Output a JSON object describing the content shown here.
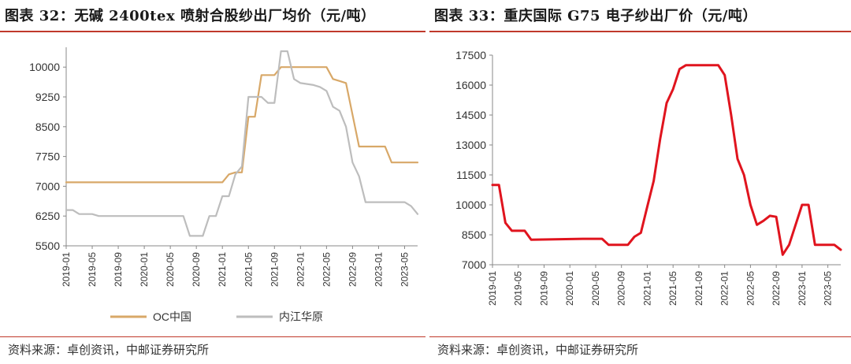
{
  "left": {
    "title": "图表 32：无碱 2400tex 喷射合股纱出厂均价（元/吨）",
    "source": "资料来源：卓创资讯，中邮证券研究所",
    "chart_data": {
      "type": "line",
      "ylim": [
        5500,
        10500
      ],
      "yticks": [
        5500,
        6250,
        7000,
        7750,
        8500,
        9250,
        10000
      ],
      "xlim": [
        "2019-01",
        "2023-07"
      ],
      "xticks": [
        "2019-01",
        "2019-05",
        "2019-09",
        "2020-01",
        "2020-05",
        "2020-09",
        "2021-01",
        "2021-05",
        "2021-09",
        "2022-01",
        "2022-05",
        "2022-09",
        "2023-01",
        "2023-05"
      ],
      "legend_position": "bottom",
      "series": [
        {
          "name": "OC中国",
          "color": "#D8A868",
          "points": [
            [
              "2019-01",
              7100
            ],
            [
              "2021-01",
              7100
            ],
            [
              "2021-02",
              7300
            ],
            [
              "2021-03",
              7350
            ],
            [
              "2021-04",
              7350
            ],
            [
              "2021-05",
              8750
            ],
            [
              "2021-06",
              8750
            ],
            [
              "2021-07",
              9800
            ],
            [
              "2021-08",
              9800
            ],
            [
              "2021-09",
              9800
            ],
            [
              "2021-10",
              10000
            ],
            [
              "2021-12",
              10000
            ],
            [
              "2022-03",
              10000
            ],
            [
              "2022-05",
              10000
            ],
            [
              "2022-06",
              9700
            ],
            [
              "2022-07",
              9650
            ],
            [
              "2022-08",
              9600
            ],
            [
              "2022-09",
              8800
            ],
            [
              "2022-10",
              8000
            ],
            [
              "2023-02",
              8000
            ],
            [
              "2023-03",
              7600
            ],
            [
              "2023-07",
              7600
            ]
          ]
        },
        {
          "name": "内江华原",
          "color": "#BDBDBD",
          "points": [
            [
              "2019-01",
              6400
            ],
            [
              "2019-02",
              6400
            ],
            [
              "2019-03",
              6300
            ],
            [
              "2019-05",
              6300
            ],
            [
              "2019-06",
              6250
            ],
            [
              "2020-07",
              6250
            ],
            [
              "2020-08",
              5750
            ],
            [
              "2020-10",
              5750
            ],
            [
              "2020-11",
              6250
            ],
            [
              "2020-12",
              6250
            ],
            [
              "2021-01",
              6750
            ],
            [
              "2021-02",
              6750
            ],
            [
              "2021-03",
              7300
            ],
            [
              "2021-04",
              7500
            ],
            [
              "2021-05",
              9250
            ],
            [
              "2021-07",
              9250
            ],
            [
              "2021-08",
              9100
            ],
            [
              "2021-09",
              9100
            ],
            [
              "2021-10",
              10400
            ],
            [
              "2021-11",
              10400
            ],
            [
              "2021-12",
              9700
            ],
            [
              "2022-01",
              9600
            ],
            [
              "2022-03",
              9550
            ],
            [
              "2022-04",
              9500
            ],
            [
              "2022-05",
              9400
            ],
            [
              "2022-06",
              9000
            ],
            [
              "2022-07",
              8900
            ],
            [
              "2022-08",
              8500
            ],
            [
              "2022-09",
              7600
            ],
            [
              "2022-10",
              7250
            ],
            [
              "2022-11",
              6600
            ],
            [
              "2023-05",
              6600
            ],
            [
              "2023-06",
              6500
            ],
            [
              "2023-07",
              6300
            ]
          ]
        }
      ]
    }
  },
  "right": {
    "title": "图表 33：重庆国际 G75 电子纱出厂价（元/吨）",
    "source": "资料来源：卓创资讯，中邮证券研究所",
    "chart_data": {
      "type": "line",
      "ylim": [
        7000,
        17500
      ],
      "yticks": [
        7000,
        8500,
        10000,
        11500,
        13000,
        14500,
        16000,
        17500
      ],
      "xlim": [
        "2019-01",
        "2023-07"
      ],
      "xticks": [
        "2019-01",
        "2019-05",
        "2019-09",
        "2020-01",
        "2020-05",
        "2020-09",
        "2021-01",
        "2021-05",
        "2021-09",
        "2022-01",
        "2022-05",
        "2022-09",
        "2023-01",
        "2023-05"
      ],
      "series": [
        {
          "name": "",
          "color": "#E0141E",
          "points": [
            [
              "2019-01",
              11000
            ],
            [
              "2019-02",
              11000
            ],
            [
              "2019-03",
              9100
            ],
            [
              "2019-04",
              8700
            ],
            [
              "2019-06",
              8700
            ],
            [
              "2019-07",
              8250
            ],
            [
              "2020-03",
              8300
            ],
            [
              "2020-06",
              8300
            ],
            [
              "2020-07",
              8000
            ],
            [
              "2020-10",
              8000
            ],
            [
              "2020-11",
              8400
            ],
            [
              "2020-12",
              8600
            ],
            [
              "2021-01",
              9900
            ],
            [
              "2021-02",
              11200
            ],
            [
              "2021-03",
              13300
            ],
            [
              "2021-04",
              15100
            ],
            [
              "2021-05",
              15800
            ],
            [
              "2021-06",
              16800
            ],
            [
              "2021-07",
              17000
            ],
            [
              "2021-08",
              17000
            ],
            [
              "2021-12",
              17000
            ],
            [
              "2022-01",
              16500
            ],
            [
              "2022-02",
              14500
            ],
            [
              "2022-03",
              12300
            ],
            [
              "2022-04",
              11500
            ],
            [
              "2022-05",
              10000
            ],
            [
              "2022-06",
              9000
            ],
            [
              "2022-07",
              9200
            ],
            [
              "2022-08",
              9450
            ],
            [
              "2022-09",
              9400
            ],
            [
              "2022-10",
              7500
            ],
            [
              "2022-11",
              8000
            ],
            [
              "2022-12",
              9000
            ],
            [
              "2023-01",
              10000
            ],
            [
              "2023-02",
              10000
            ],
            [
              "2023-03",
              8000
            ],
            [
              "2023-06",
              8000
            ],
            [
              "2023-07",
              7750
            ]
          ]
        }
      ]
    }
  }
}
